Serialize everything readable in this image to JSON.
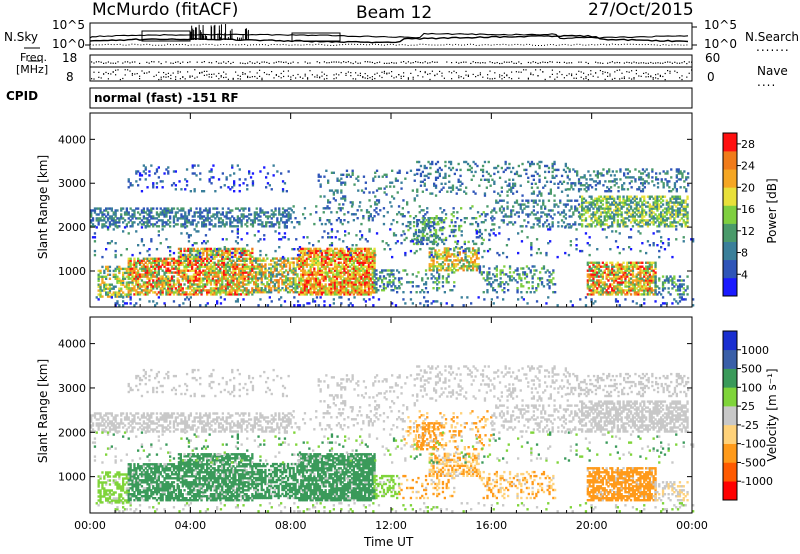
{
  "header": {
    "station": "McMurdo (fitACF)",
    "beam": "Beam 12",
    "date": "27/Oct/2015"
  },
  "panels": {
    "nsky_label": "N.Sky",
    "nsearch_label": "N.Search",
    "nsky_ticks": [
      "10^5",
      "10^0"
    ],
    "nsearch_ticks": [
      "10^5",
      "10^0"
    ],
    "freq_label": "Freq.",
    "freq_unit": "[MHz]",
    "freq_ticks": [
      "18",
      "8"
    ],
    "nave_label": "Nave",
    "nave_ticks": [
      "60",
      "0"
    ],
    "cpid_label": "CPID",
    "cpid_text": "normal (fast) -151 RF"
  },
  "colors": {
    "power": [
      "#1a1aff",
      "#2f55b8",
      "#3a7f9a",
      "#4a9a6a",
      "#7fcf3f",
      "#e8e03a",
      "#f5a623",
      "#f07b1a",
      "#ff1010"
    ],
    "velocity": [
      "#ff0000",
      "#ff5a00",
      "#ff9a1a",
      "#ffd27a",
      "#c8c8c8",
      "#7fd43a",
      "#3a9a5a",
      "#3a5fa8",
      "#1a2fd0"
    ]
  },
  "chart_data": [
    {
      "type": "heatmap",
      "quantity": "power",
      "xlabel": "",
      "ylabel": "Slant Range [km]",
      "xlim": [
        0,
        24
      ],
      "ylim": [
        180,
        4600
      ],
      "x_ticks": [
        "00:00",
        "04:00",
        "08:00",
        "12:00",
        "16:00",
        "20:00",
        "00:00"
      ],
      "y_ticks": [
        1000,
        2000,
        3000,
        4000
      ],
      "colorbar": {
        "label": "Power [dB]",
        "ticks": [
          4,
          8,
          12,
          16,
          20,
          24,
          28
        ],
        "range": [
          0,
          30
        ]
      }
    },
    {
      "type": "heatmap",
      "quantity": "velocity",
      "xlabel": "Time UT",
      "ylabel": "Slant Range [km]",
      "xlim": [
        0,
        24
      ],
      "ylim": [
        180,
        4600
      ],
      "x_ticks": [
        "00:00",
        "04:00",
        "08:00",
        "12:00",
        "16:00",
        "20:00",
        "00:00"
      ],
      "y_ticks": [
        1000,
        2000,
        3000,
        4000
      ],
      "colorbar": {
        "label": "Velocity [m s⁻¹]",
        "ticks": [
          1000,
          500,
          100,
          25,
          -25,
          -100,
          -500,
          -1000
        ]
      }
    }
  ]
}
